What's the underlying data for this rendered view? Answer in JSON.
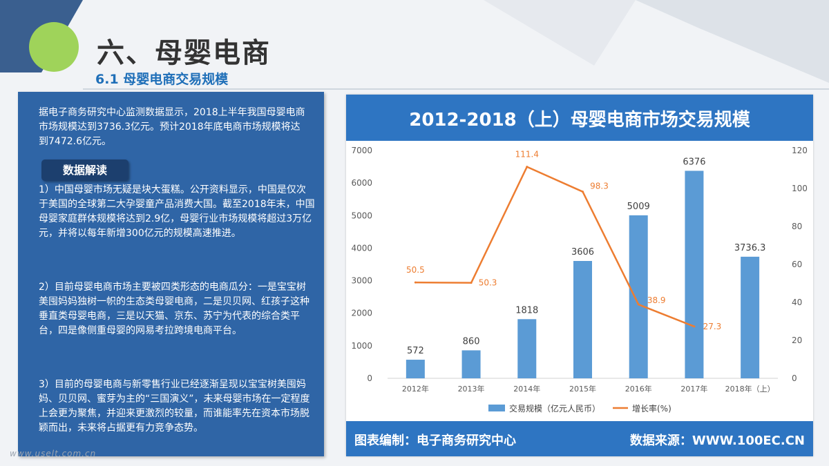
{
  "header": {
    "title": "六、母婴电商",
    "subtitle": "6.1 母婴电商交易规模"
  },
  "left_panel": {
    "intro": "据电子商务研究中心监测数据显示，2018上半年我国母婴电商市场规模达到3736.3亿元。预计2018年底电商市场规模将达到7472.6亿元。",
    "badge": "数据解读",
    "paragraphs": [
      "1）中国母婴市场无疑是块大蛋糕。公开资料显示，中国是仅次于美国的全球第二大孕婴童产品消费大国。截至2018年末，中国母婴家庭群体规模将达到2.9亿，母婴行业市场规模将超过3万亿元，并将以每年新增300亿元的规模高速推进。",
      "2）目前母婴电商市场主要被四类形态的电商瓜分：一是宝宝树美囤妈妈独树一帜的生态类母婴电商，二是贝贝网、红孩子这种垂直类母婴电商，三是以天猫、京东、苏宁为代表的综合类平台，四是像侧重母婴的网易考拉跨境电商平台。",
      "3）目前的母婴电商与新零售行业已经逐渐呈现以宝宝树美囤妈妈、贝贝网、蜜芽为主的“三国演义”，未来母婴市场在一定程度上会更为聚焦，并迎来更激烈的较量，而谁能率先在资本市场脱颖而出，未来将占据更有力竞争态势。"
    ]
  },
  "chart_card": {
    "title": "2012-2018（上）母婴电商市场交易规模",
    "footer_left": "图表编制：电子商务研究中心",
    "footer_right": "数据来源：WWW.100EC.CN"
  },
  "chart_data": {
    "type": "bar",
    "categories": [
      "2012年",
      "2013年",
      "2014年",
      "2015年",
      "2016年",
      "2017年",
      "2018年（上）"
    ],
    "series": [
      {
        "name": "交易规模（亿元人民币）",
        "type": "bar",
        "axis": "left",
        "color": "#5b9bd5",
        "values": [
          572,
          860,
          1818,
          3606,
          5009,
          6376,
          3736.3
        ],
        "labels": [
          "572",
          "860",
          "1818",
          "3606",
          "5009",
          "6376",
          "3736.3"
        ]
      },
      {
        "name": "增长率(%)",
        "type": "line",
        "axis": "right",
        "color": "#ed7d31",
        "values": [
          50.5,
          50.3,
          111.4,
          98.3,
          38.9,
          27.3,
          null
        ],
        "labels": [
          "50.5",
          "50.3",
          "111.4",
          "98.3",
          "38.9",
          "27.3",
          ""
        ]
      }
    ],
    "y_left": {
      "min": 0,
      "max": 7000,
      "ticks": [
        0,
        1000,
        2000,
        3000,
        4000,
        5000,
        6000,
        7000
      ]
    },
    "y_right": {
      "min": 0,
      "max": 120,
      "ticks": [
        0,
        20,
        40,
        60,
        80,
        100,
        120
      ]
    },
    "legend_position": "bottom",
    "grid": false
  },
  "watermark": "www.uselt.com.cn"
}
